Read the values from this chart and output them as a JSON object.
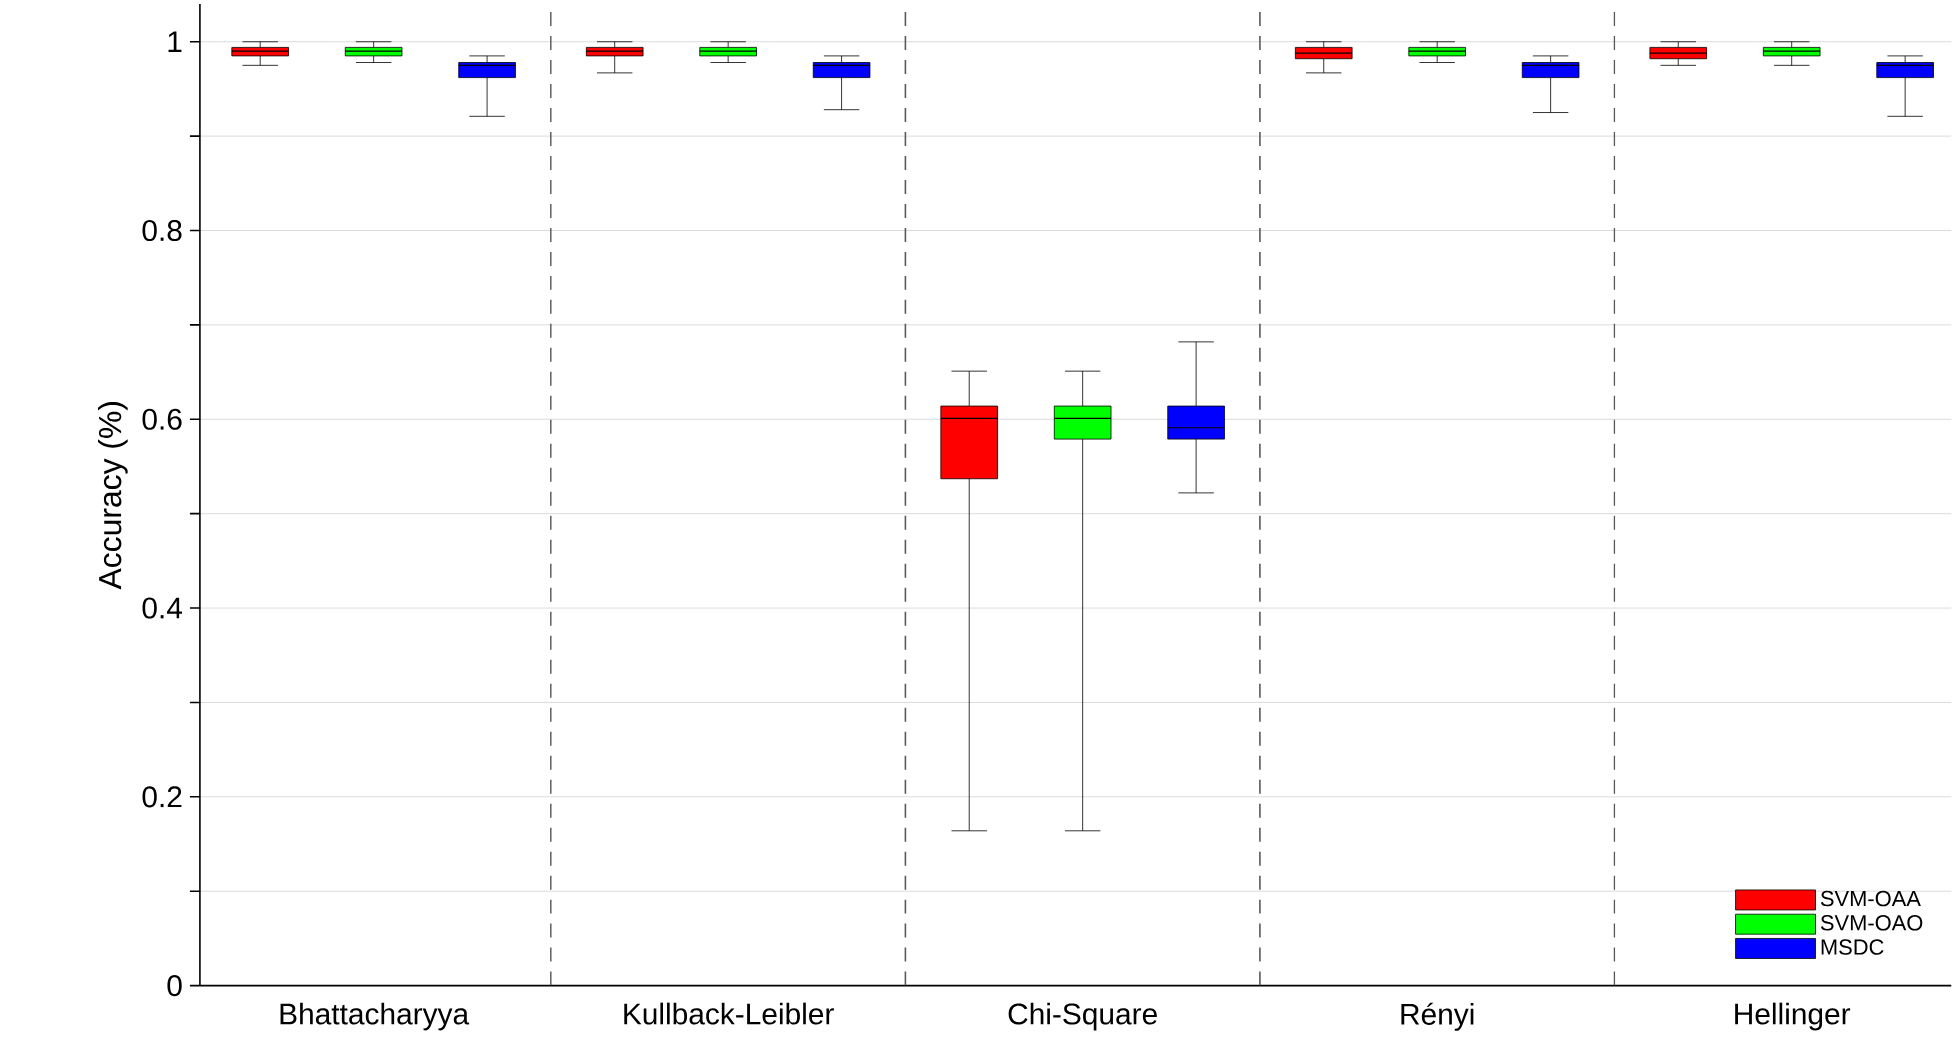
{
  "chart_data": {
    "type": "box",
    "ylabel": "Accuracy (%)",
    "categories": [
      "Bhattacharyya",
      "Kullback-Leibler",
      "Chi-Square",
      "Rényi",
      "Hellinger"
    ],
    "ylim": [
      0,
      1.04
    ],
    "yticks": [
      0,
      {
        "value": 0.1,
        "label": null
      },
      0.2,
      {
        "value": 0.3,
        "label": null
      },
      0.4,
      {
        "value": 0.5,
        "label": null
      },
      0.6,
      {
        "value": 0.7,
        "label": null
      },
      0.8,
      {
        "value": 0.9,
        "label": null
      },
      1
    ],
    "grid": "y",
    "legend": "bottom right",
    "series": [
      {
        "name": "SVM-OAA",
        "color": "#ff0000",
        "boxes": [
          {
            "low": 0.975,
            "q1": 0.985,
            "median": 0.99,
            "q3": 0.994,
            "high": 1.0
          },
          {
            "low": 0.967,
            "q1": 0.985,
            "median": 0.99,
            "q3": 0.994,
            "high": 1.0
          },
          {
            "low": 0.164,
            "q1": 0.537,
            "median": 0.601,
            "q3": 0.614,
            "high": 0.651
          },
          {
            "low": 0.967,
            "q1": 0.982,
            "median": 0.988,
            "q3": 0.994,
            "high": 1.0
          },
          {
            "low": 0.975,
            "q1": 0.982,
            "median": 0.988,
            "q3": 0.994,
            "high": 1.0
          }
        ]
      },
      {
        "name": "SVM-OAO",
        "color": "#00ff00",
        "boxes": [
          {
            "low": 0.978,
            "q1": 0.985,
            "median": 0.99,
            "q3": 0.994,
            "high": 1.0
          },
          {
            "low": 0.978,
            "q1": 0.985,
            "median": 0.99,
            "q3": 0.994,
            "high": 1.0
          },
          {
            "low": 0.164,
            "q1": 0.579,
            "median": 0.601,
            "q3": 0.614,
            "high": 0.651
          },
          {
            "low": 0.978,
            "q1": 0.985,
            "median": 0.99,
            "q3": 0.994,
            "high": 1.0
          },
          {
            "low": 0.975,
            "q1": 0.985,
            "median": 0.99,
            "q3": 0.994,
            "high": 1.0
          }
        ]
      },
      {
        "name": "MSDC",
        "color": "#0000ff",
        "boxes": [
          {
            "low": 0.921,
            "q1": 0.962,
            "median": 0.975,
            "q3": 0.978,
            "high": 0.985
          },
          {
            "low": 0.928,
            "q1": 0.962,
            "median": 0.975,
            "q3": 0.978,
            "high": 0.985
          },
          {
            "low": 0.522,
            "q1": 0.579,
            "median": 0.591,
            "q3": 0.614,
            "high": 0.682
          },
          {
            "low": 0.925,
            "q1": 0.962,
            "median": 0.975,
            "q3": 0.978,
            "high": 0.985
          },
          {
            "low": 0.921,
            "q1": 0.962,
            "median": 0.975,
            "q3": 0.978,
            "high": 0.985
          }
        ]
      }
    ]
  }
}
